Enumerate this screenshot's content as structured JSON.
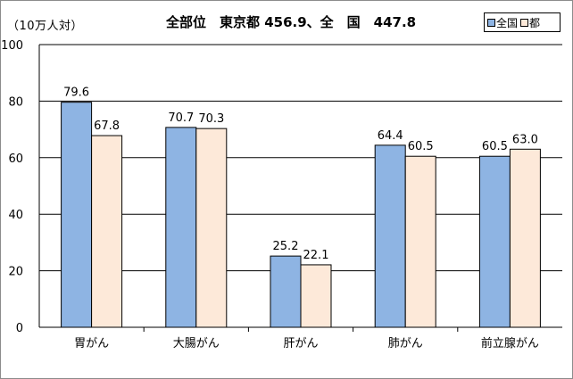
{
  "chart_data": {
    "type": "bar",
    "unit_label": "（10万人対）",
    "title": "全部位　東京都 456.9、全　国　447.8",
    "categories": [
      "胃がん",
      "大腸がん",
      "肝がん",
      "肺がん",
      "前立腺がん"
    ],
    "series": [
      {
        "name": "全国",
        "values": [
          79.6,
          70.7,
          25.2,
          64.4,
          60.5
        ],
        "color": "#8eb4e3"
      },
      {
        "name": "都",
        "values": [
          67.8,
          70.3,
          22.1,
          60.5,
          63.0
        ],
        "color": "#fde9d9"
      }
    ],
    "ylim": [
      0,
      100
    ],
    "yticks": [
      0,
      20,
      40,
      60,
      80,
      100
    ],
    "grid": true,
    "legend_position": "top-right",
    "xlabel": "",
    "ylabel": ""
  }
}
